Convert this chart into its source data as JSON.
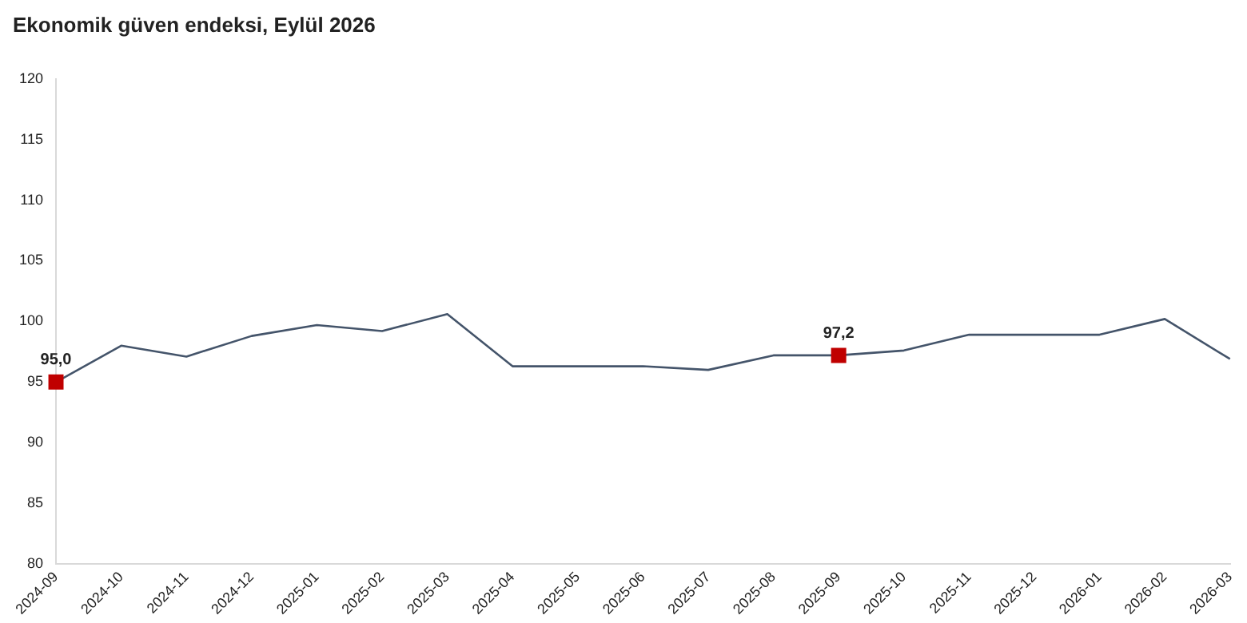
{
  "chart_data": {
    "type": "line",
    "title": "Ekonomik güven endeksi, Eylül 2026",
    "categories": [
      "2024-09",
      "2024-10",
      "2024-11",
      "2024-12",
      "2025-01",
      "2025-02",
      "2025-03",
      "2025-04",
      "2025-05",
      "2025-06",
      "2025-07",
      "2025-08",
      "2025-09",
      "2025-10",
      "2025-11",
      "2025-12",
      "2026-01",
      "2026-02",
      "2026-03"
    ],
    "series": [
      {
        "color": "#44546a",
        "values": [
          95.0,
          98.0,
          97.1,
          98.8,
          99.7,
          99.2,
          100.6,
          96.3,
          96.3,
          96.3,
          96.0,
          97.2,
          97.2,
          97.6,
          98.9,
          98.9,
          98.9,
          100.2,
          96.9
        ]
      },
      {
        "type": "scatter",
        "color": "#c00000",
        "marker": "square",
        "values": [
          95.0,
          null,
          null,
          null,
          null,
          null,
          null,
          null,
          null,
          null,
          null,
          null,
          97.2,
          null,
          null,
          null,
          null,
          null,
          null
        ],
        "value_labels": [
          "95,0",
          null,
          null,
          null,
          null,
          null,
          null,
          null,
          null,
          null,
          null,
          null,
          "97,2",
          null,
          null,
          null,
          null,
          null,
          null
        ]
      }
    ],
    "ylim": [
      80,
      120
    ],
    "yticks": [
      80,
      85,
      90,
      95,
      100,
      105,
      110,
      115,
      120
    ],
    "grid": false,
    "legend": false,
    "marker": "none",
    "line_style": "solid"
  }
}
